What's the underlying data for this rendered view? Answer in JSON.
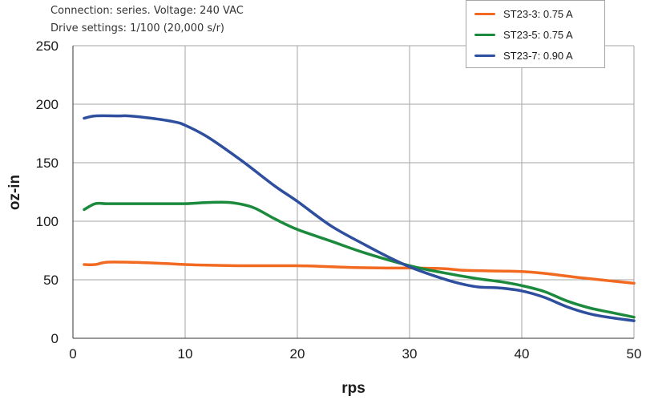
{
  "chart_data": {
    "type": "line",
    "annotations": [
      "Connection: series. Voltage: 240 VAC",
      "Drive settings: 1/100 (20,000 s/r)"
    ],
    "xlabel": "rps",
    "ylabel": "oz-in",
    "xlim": [
      0,
      50
    ],
    "ylim": [
      0,
      250
    ],
    "xticks": [
      0,
      10,
      20,
      30,
      40,
      50
    ],
    "yticks": [
      0,
      50,
      100,
      150,
      200,
      250
    ],
    "grid": true,
    "legend_position": "top-right",
    "series": [
      {
        "name": "ST23-3: 0.75 A",
        "color": "#f26a21",
        "x": [
          1,
          2,
          3,
          5,
          8,
          10,
          12,
          15,
          18,
          20,
          22,
          25,
          28,
          30,
          33,
          35,
          38,
          40,
          42,
          45,
          48,
          50
        ],
        "y": [
          63,
          63,
          65,
          65,
          64,
          63,
          62.5,
          62,
          62,
          62,
          61.5,
          60.5,
          60,
          60,
          59.5,
          58,
          57.5,
          57,
          55.5,
          52,
          49,
          47
        ]
      },
      {
        "name": "ST23-5: 0.75 A",
        "color": "#1b8a3c",
        "x": [
          1,
          2,
          3,
          5,
          8,
          10,
          12,
          14,
          16,
          18,
          20,
          23,
          26,
          30,
          33,
          36,
          38,
          40,
          42,
          44,
          46,
          48,
          50
        ],
        "y": [
          110,
          115,
          115,
          115,
          115,
          115,
          116,
          116,
          112,
          102,
          93,
          83,
          73,
          62,
          56,
          51,
          48.5,
          45,
          40,
          32,
          26,
          22,
          18
        ]
      },
      {
        "name": "ST23-7: 0.90 A",
        "color": "#2e4e9e",
        "x": [
          1,
          2,
          4,
          5,
          7,
          9,
          10,
          12,
          15,
          18,
          20,
          23,
          26,
          28,
          30,
          32,
          34,
          36,
          38,
          40,
          42,
          44,
          46,
          48,
          50
        ],
        "y": [
          188,
          190,
          190,
          190,
          188,
          185,
          182,
          172,
          152,
          130,
          117,
          96,
          80,
          70,
          61,
          54,
          48,
          44,
          43,
          40.5,
          35,
          27,
          21,
          17.5,
          15
        ]
      }
    ]
  }
}
